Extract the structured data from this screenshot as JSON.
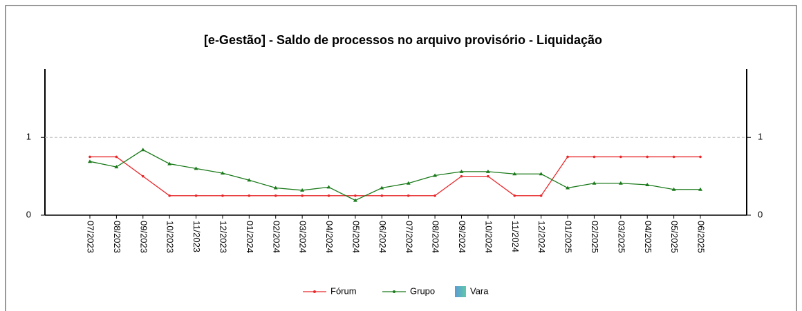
{
  "chart_data": {
    "type": "line",
    "title": "[e-Gestão]  - Saldo de processos no arquivo provisório - Liquidação",
    "categories": [
      "07/2023",
      "08/2023",
      "09/2023",
      "10/2023",
      "11/2023",
      "12/2023",
      "01/2024",
      "02/2024",
      "03/2024",
      "04/2024",
      "05/2024",
      "06/2024",
      "07/2024",
      "08/2024",
      "09/2024",
      "10/2024",
      "11/2024",
      "12/2024",
      "01/2025",
      "02/2025",
      "03/2025",
      "04/2025",
      "05/2025",
      "06/2025"
    ],
    "series": [
      {
        "name": "Fórum",
        "color": "#e8282b",
        "values": [
          0.75,
          0.75,
          0.5,
          0.25,
          0.25,
          0.25,
          0.25,
          0.25,
          0.25,
          0.25,
          0.25,
          0.25,
          0.25,
          0.25,
          0.5,
          0.5,
          0.25,
          0.25,
          0.75,
          0.75,
          0.75,
          0.75,
          0.75,
          0.75
        ]
      },
      {
        "name": "Grupo",
        "color": "#1a7a1a",
        "values": [
          0.69,
          0.62,
          0.84,
          0.66,
          0.6,
          0.54,
          0.45,
          0.35,
          0.32,
          0.36,
          0.19,
          0.35,
          0.41,
          0.51,
          0.56,
          0.56,
          0.53,
          0.53,
          0.35,
          0.41,
          0.41,
          0.39,
          0.33,
          0.33
        ]
      },
      {
        "name": "Vara",
        "color": "#5b9bd5",
        "type": "bar",
        "values": [
          0,
          0,
          0,
          0,
          0,
          0,
          0,
          0,
          0,
          0,
          0,
          0,
          0,
          0,
          0,
          0,
          0,
          0,
          0,
          0,
          0,
          0,
          0,
          0
        ]
      }
    ],
    "ylim": [
      0,
      1.88
    ],
    "yticks": [
      0,
      1
    ],
    "y2lim": [
      0,
      1.88
    ],
    "y2ticks": [
      0,
      1
    ],
    "grid": true,
    "legend": "bottom"
  }
}
